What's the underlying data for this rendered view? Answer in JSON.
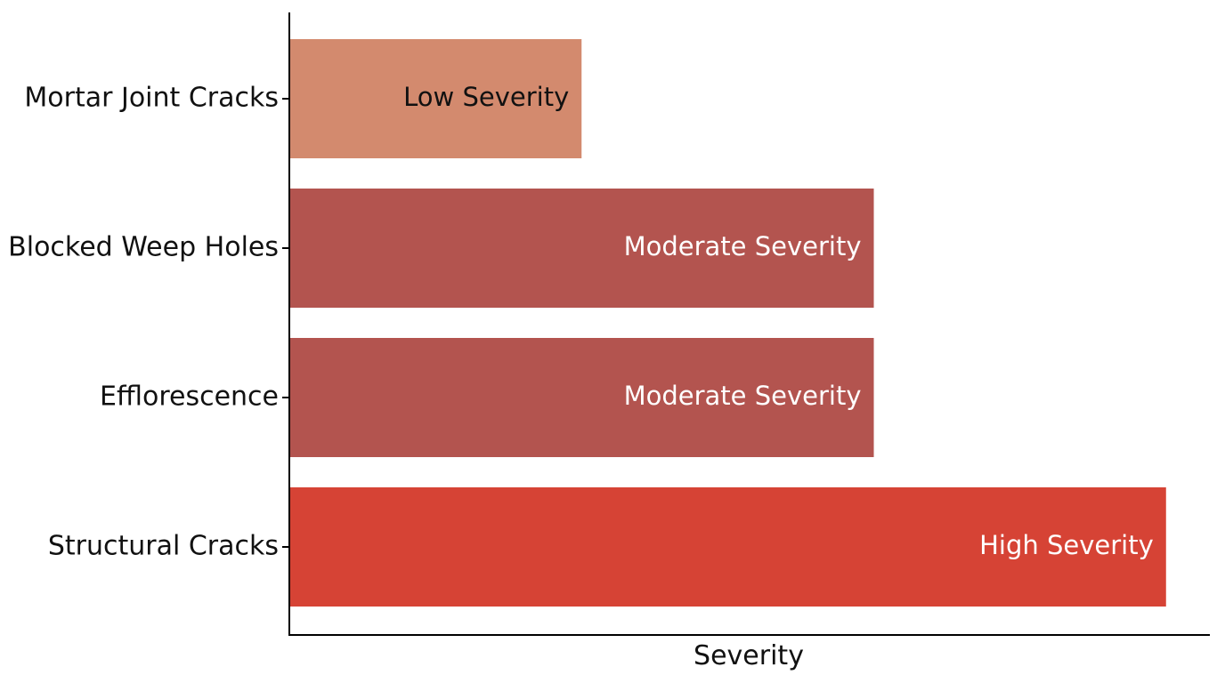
{
  "chart_data": {
    "type": "bar",
    "orientation": "horizontal",
    "categories": [
      "Mortar Joint Cracks",
      "Blocked Weep Holes",
      "Efflorescence",
      "Structural Cracks"
    ],
    "values": [
      1,
      2,
      2,
      3
    ],
    "data_labels": [
      "Low Severity",
      "Moderate Severity",
      "Moderate Severity",
      "High Severity"
    ],
    "xlabel": "Severity",
    "ylabel": "",
    "title": "",
    "xlim": [
      0,
      3.15
    ],
    "grid": false,
    "legend": "none",
    "colors": {
      "low": "#d38a6e",
      "moderate": "#b3544f",
      "high": "#d64335"
    },
    "label_colors": {
      "low": "#111111",
      "moderate": "#ffffff",
      "high": "#ffffff"
    }
  }
}
